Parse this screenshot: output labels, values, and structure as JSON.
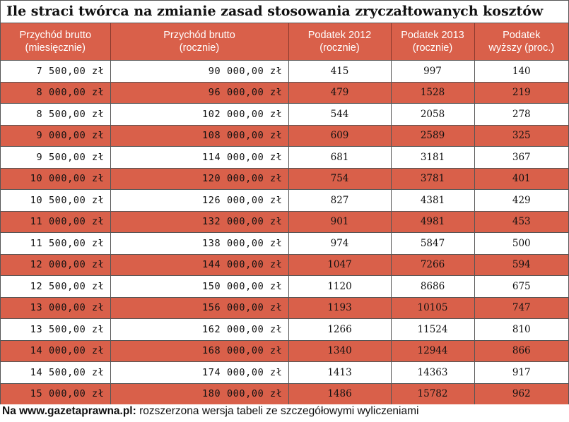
{
  "title": "Ile straci twórca na zmianie zasad stosowania zryczałtowanych kosztów",
  "headers": [
    [
      "Przychód brutto",
      "(miesięcznie)"
    ],
    [
      "Przychód brutto",
      "(rocznie)"
    ],
    [
      "Podatek 2012",
      "(rocznie)"
    ],
    [
      "Podatek 2013",
      "(rocznie)"
    ],
    [
      "Podatek",
      "wyższy (proc.)"
    ]
  ],
  "rows": [
    [
      "7 500,00 zł",
      "90 000,00 zł",
      "415",
      "997",
      "140"
    ],
    [
      "8 000,00 zł",
      "96 000,00 zł",
      "479",
      "1528",
      "219"
    ],
    [
      "8 500,00 zł",
      "102 000,00 zł",
      "544",
      "2058",
      "278"
    ],
    [
      "9 000,00 zł",
      "108 000,00 zł",
      "609",
      "2589",
      "325"
    ],
    [
      "9 500,00 zł",
      "114 000,00 zł",
      "681",
      "3181",
      "367"
    ],
    [
      "10 000,00 zł",
      "120 000,00 zł",
      "754",
      "3781",
      "401"
    ],
    [
      "10 500,00 zł",
      "126 000,00 zł",
      "827",
      "4381",
      "429"
    ],
    [
      "11 000,00 zł",
      "132 000,00 zł",
      "901",
      "4981",
      "453"
    ],
    [
      "11 500,00 zł",
      "138 000,00 zł",
      "974",
      "5847",
      "500"
    ],
    [
      "12 000,00 zł",
      "144 000,00 zł",
      "1047",
      "7266",
      "594"
    ],
    [
      "12 500,00 zł",
      "150 000,00 zł",
      "1120",
      "8686",
      "675"
    ],
    [
      "13 000,00 zł",
      "156 000,00 zł",
      "1193",
      "10105",
      "747"
    ],
    [
      "13 500,00 zł",
      "162 000,00 zł",
      "1266",
      "11524",
      "810"
    ],
    [
      "14 000,00 zł",
      "168 000,00 zł",
      "1340",
      "12944",
      "866"
    ],
    [
      "14 500,00 zł",
      "174 000,00 zł",
      "1413",
      "14363",
      "917"
    ],
    [
      "15 000,00 zł",
      "180 000,00 zł",
      "1486",
      "15782",
      "962"
    ]
  ],
  "footer": {
    "prefix": "Na www.gazetaprawna.pl:",
    "text": " rozszerzona wersja tabeli ze szczegółowymi wyliczeniami"
  },
  "colors": {
    "accent": "#d9604a",
    "border": "#555555"
  }
}
